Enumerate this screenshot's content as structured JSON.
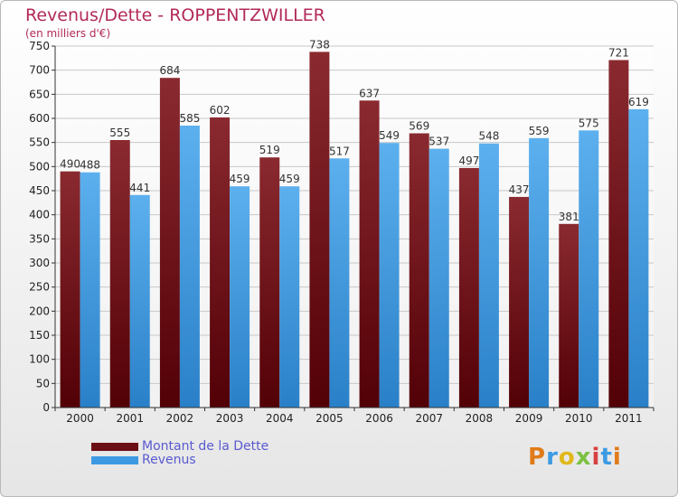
{
  "title": "Revenus/Dette - ROPPENTZWILLER",
  "subtitle": "(en milliers d'€)",
  "colors": {
    "dette": "#6b0d14",
    "revenus": "#3d9ae2",
    "title": "#b22a5a",
    "legend_text": "#5a5ad0"
  },
  "legend": [
    {
      "label": "Montant de la Dette",
      "color": "#6b0d14"
    },
    {
      "label": "Revenus",
      "color": "#3d9ae2"
    }
  ],
  "logo": {
    "text": "Proxiti"
  },
  "chart_data": {
    "type": "bar",
    "title": "Revenus/Dette - ROPPENTZWILLER",
    "subtitle": "(en milliers d'€)",
    "categories": [
      "2000",
      "2001",
      "2002",
      "2003",
      "2004",
      "2005",
      "2006",
      "2007",
      "2008",
      "2009",
      "2010",
      "2011"
    ],
    "series": [
      {
        "name": "Montant de la Dette",
        "values": [
          490,
          555,
          684,
          602,
          519,
          738,
          637,
          569,
          497,
          437,
          381,
          721
        ]
      },
      {
        "name": "Revenus",
        "values": [
          488,
          441,
          585,
          459,
          459,
          517,
          549,
          537,
          548,
          559,
          575,
          619
        ]
      }
    ],
    "ylim": [
      0,
      750
    ],
    "yticks": [
      0,
      50,
      100,
      150,
      200,
      250,
      300,
      350,
      400,
      450,
      500,
      550,
      600,
      650,
      700,
      750
    ],
    "grid": true,
    "legend_position": "bottom-left"
  }
}
